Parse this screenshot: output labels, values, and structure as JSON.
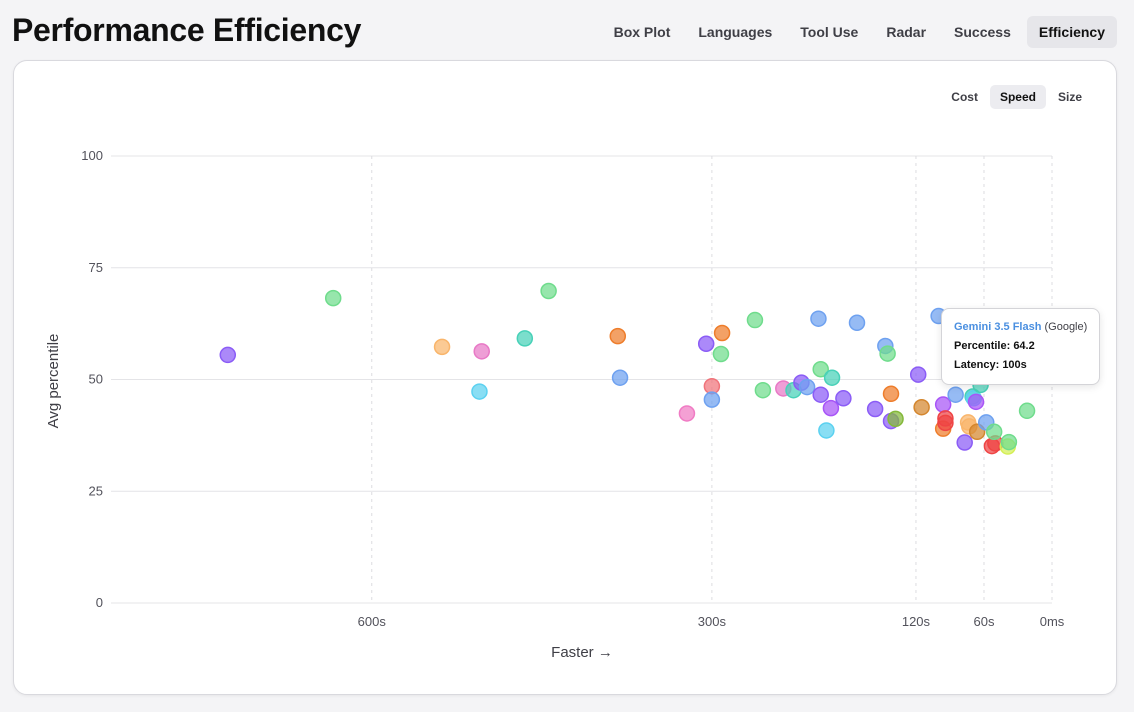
{
  "title": "Performance Efficiency",
  "nav": {
    "tabs": [
      {
        "label": "Box Plot"
      },
      {
        "label": "Languages"
      },
      {
        "label": "Tool Use"
      },
      {
        "label": "Radar"
      },
      {
        "label": "Success"
      },
      {
        "label": "Efficiency"
      }
    ],
    "active": "Efficiency"
  },
  "metric_tabs": {
    "tabs": [
      {
        "label": "Cost"
      },
      {
        "label": "Speed"
      },
      {
        "label": "Size"
      }
    ],
    "active": "Speed"
  },
  "tooltip": {
    "model": "Gemini 3.5 Flash",
    "org": "(Google)",
    "percentile_label": "Percentile:",
    "percentile_value": "64.2",
    "latency_label": "Latency:",
    "latency_value": "100s"
  },
  "chart_data": {
    "type": "scatter",
    "xlabel": "Faster →",
    "ylabel": "Avg percentile",
    "x_reversed": true,
    "xlim": [
      0,
      830
    ],
    "ylim": [
      0,
      100
    ],
    "x_ticks": [
      {
        "v": 600,
        "label": "600s"
      },
      {
        "v": 300,
        "label": "300s"
      },
      {
        "v": 120,
        "label": "120s"
      },
      {
        "v": 60,
        "label": "60s"
      },
      {
        "v": 0,
        "label": "0ms"
      }
    ],
    "y_ticks": [
      0,
      25,
      50,
      75,
      100
    ],
    "grid": true,
    "points": [
      {
        "x": 727,
        "y": 55.5,
        "color": "#8b5cf6"
      },
      {
        "x": 634,
        "y": 68.2,
        "color": "#6fdc8c"
      },
      {
        "x": 538,
        "y": 57.3,
        "color": "#f9b56b"
      },
      {
        "x": 505,
        "y": 47.3,
        "color": "#5bd1f0"
      },
      {
        "x": 503,
        "y": 56.3,
        "color": "#e879c6"
      },
      {
        "x": 465,
        "y": 59.2,
        "color": "#48d1b8"
      },
      {
        "x": 444,
        "y": 69.8,
        "color": "#6fdc8c"
      },
      {
        "x": 383,
        "y": 59.7,
        "color": "#ee7d2b"
      },
      {
        "x": 381,
        "y": 50.4,
        "color": "#6ea1f0"
      },
      {
        "x": 322,
        "y": 42.4,
        "color": "#f07bc4"
      },
      {
        "x": 305,
        "y": 58.0,
        "color": "#8b5cf6"
      },
      {
        "x": 300,
        "y": 48.5,
        "color": "#f0737a"
      },
      {
        "x": 300,
        "y": 45.5,
        "color": "#6ea1f0"
      },
      {
        "x": 291,
        "y": 60.4,
        "color": "#ee7d2b"
      },
      {
        "x": 292,
        "y": 55.7,
        "color": "#6fdc8c"
      },
      {
        "x": 262,
        "y": 63.3,
        "color": "#6fdc8c"
      },
      {
        "x": 255,
        "y": 47.6,
        "color": "#6fdc8c"
      },
      {
        "x": 237,
        "y": 48.0,
        "color": "#e879c6"
      },
      {
        "x": 228,
        "y": 47.6,
        "color": "#48d1b8"
      },
      {
        "x": 221,
        "y": 49.3,
        "color": "#8b5cf6"
      },
      {
        "x": 216,
        "y": 48.3,
        "color": "#6ea1f0"
      },
      {
        "x": 206,
        "y": 63.6,
        "color": "#6ea1f0"
      },
      {
        "x": 204,
        "y": 52.3,
        "color": "#6fdc8c"
      },
      {
        "x": 204,
        "y": 46.6,
        "color": "#8b5cf6"
      },
      {
        "x": 199,
        "y": 38.6,
        "color": "#5bd1f0"
      },
      {
        "x": 194,
        "y": 50.4,
        "color": "#48d1b8"
      },
      {
        "x": 195,
        "y": 43.6,
        "color": "#a855f7"
      },
      {
        "x": 184,
        "y": 45.8,
        "color": "#8b5cf6"
      },
      {
        "x": 172,
        "y": 62.7,
        "color": "#6ea1f0"
      },
      {
        "x": 156,
        "y": 43.4,
        "color": "#8b5cf6"
      },
      {
        "x": 147,
        "y": 57.5,
        "color": "#6ea1f0"
      },
      {
        "x": 145,
        "y": 55.8,
        "color": "#6fdc8c"
      },
      {
        "x": 142,
        "y": 46.8,
        "color": "#ee7d2b"
      },
      {
        "x": 142,
        "y": 40.7,
        "color": "#8b5cf6"
      },
      {
        "x": 138,
        "y": 41.2,
        "color": "#84b83a"
      },
      {
        "x": 118,
        "y": 51.1,
        "color": "#8b5cf6"
      },
      {
        "x": 115,
        "y": 43.8,
        "color": "#d4862e"
      },
      {
        "x": 100,
        "y": 64.2,
        "color": "#6ea1f0"
      },
      {
        "x": 96,
        "y": 39.0,
        "color": "#ee7d2b"
      },
      {
        "x": 96,
        "y": 44.4,
        "color": "#a855f7"
      },
      {
        "x": 94,
        "y": 41.3,
        "color": "#ef4444"
      },
      {
        "x": 94,
        "y": 40.3,
        "color": "#ef4444"
      },
      {
        "x": 85,
        "y": 46.6,
        "color": "#6ea1f0"
      },
      {
        "x": 77,
        "y": 35.9,
        "color": "#8b5cf6"
      },
      {
        "x": 74,
        "y": 40.4,
        "color": "#f9b56b"
      },
      {
        "x": 73,
        "y": 39.5,
        "color": "#f9b56b"
      },
      {
        "x": 70,
        "y": 46.2,
        "color": "#48d1b8"
      },
      {
        "x": 69,
        "y": 45.8,
        "color": "#5bd1f0"
      },
      {
        "x": 67,
        "y": 45.0,
        "color": "#a855f7"
      },
      {
        "x": 66,
        "y": 38.3,
        "color": "#d4862e"
      },
      {
        "x": 58,
        "y": 40.4,
        "color": "#6ea1f0"
      },
      {
        "x": 53,
        "y": 35.1,
        "color": "#ef4444"
      },
      {
        "x": 50,
        "y": 35.7,
        "color": "#ef4444"
      },
      {
        "x": 51,
        "y": 38.3,
        "color": "#6fdc8c"
      },
      {
        "x": 39,
        "y": 35.0,
        "color": "#d4ef55"
      },
      {
        "x": 38,
        "y": 36.0,
        "color": "#6fdc8c"
      },
      {
        "x": 22,
        "y": 43.0,
        "color": "#6fdc8c"
      },
      {
        "x": 63,
        "y": 48.8,
        "color": "#48d1b8"
      },
      {
        "x": 76,
        "y": 55.6,
        "color": "#ee7d2b"
      }
    ]
  }
}
